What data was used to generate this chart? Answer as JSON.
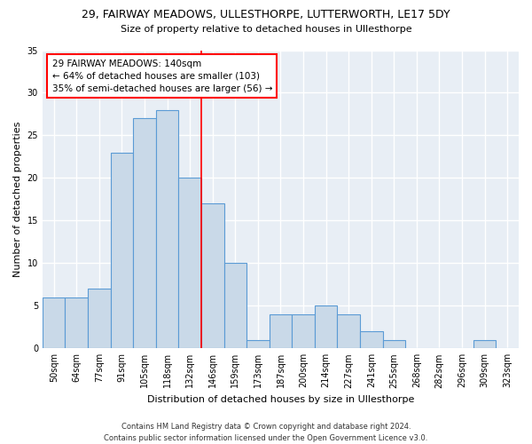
{
  "title_line1": "29, FAIRWAY MEADOWS, ULLESTHORPE, LUTTERWORTH, LE17 5DY",
  "title_line2": "Size of property relative to detached houses in Ullesthorpe",
  "xlabel": "Distribution of detached houses by size in Ullesthorpe",
  "ylabel": "Number of detached properties",
  "bin_labels": [
    "50sqm",
    "64sqm",
    "77sqm",
    "91sqm",
    "105sqm",
    "118sqm",
    "132sqm",
    "146sqm",
    "159sqm",
    "173sqm",
    "187sqm",
    "200sqm",
    "214sqm",
    "227sqm",
    "241sqm",
    "255sqm",
    "268sqm",
    "282sqm",
    "296sqm",
    "309sqm",
    "323sqm"
  ],
  "bar_values": [
    6,
    6,
    7,
    23,
    27,
    28,
    20,
    17,
    10,
    1,
    4,
    4,
    5,
    4,
    2,
    1,
    0,
    0,
    0,
    1,
    0
  ],
  "bar_color": "#c9d9e8",
  "bar_edge_color": "#5b9bd5",
  "vline_color": "red",
  "vline_x_index": 6.5,
  "annotation_text_line1": "29 FAIRWAY MEADOWS: 140sqm",
  "annotation_text_line2": "← 64% of detached houses are smaller (103)",
  "annotation_text_line3": "35% of semi-detached houses are larger (56) →",
  "annotation_box_color": "white",
  "annotation_box_edge_color": "red",
  "ylim": [
    0,
    35
  ],
  "yticks": [
    0,
    5,
    10,
    15,
    20,
    25,
    30,
    35
  ],
  "footer_line1": "Contains HM Land Registry data © Crown copyright and database right 2024.",
  "footer_line2": "Contains public sector information licensed under the Open Government Licence v3.0.",
  "background_color": "#ffffff",
  "plot_background_color": "#e8eef5",
  "grid_color": "#ffffff"
}
